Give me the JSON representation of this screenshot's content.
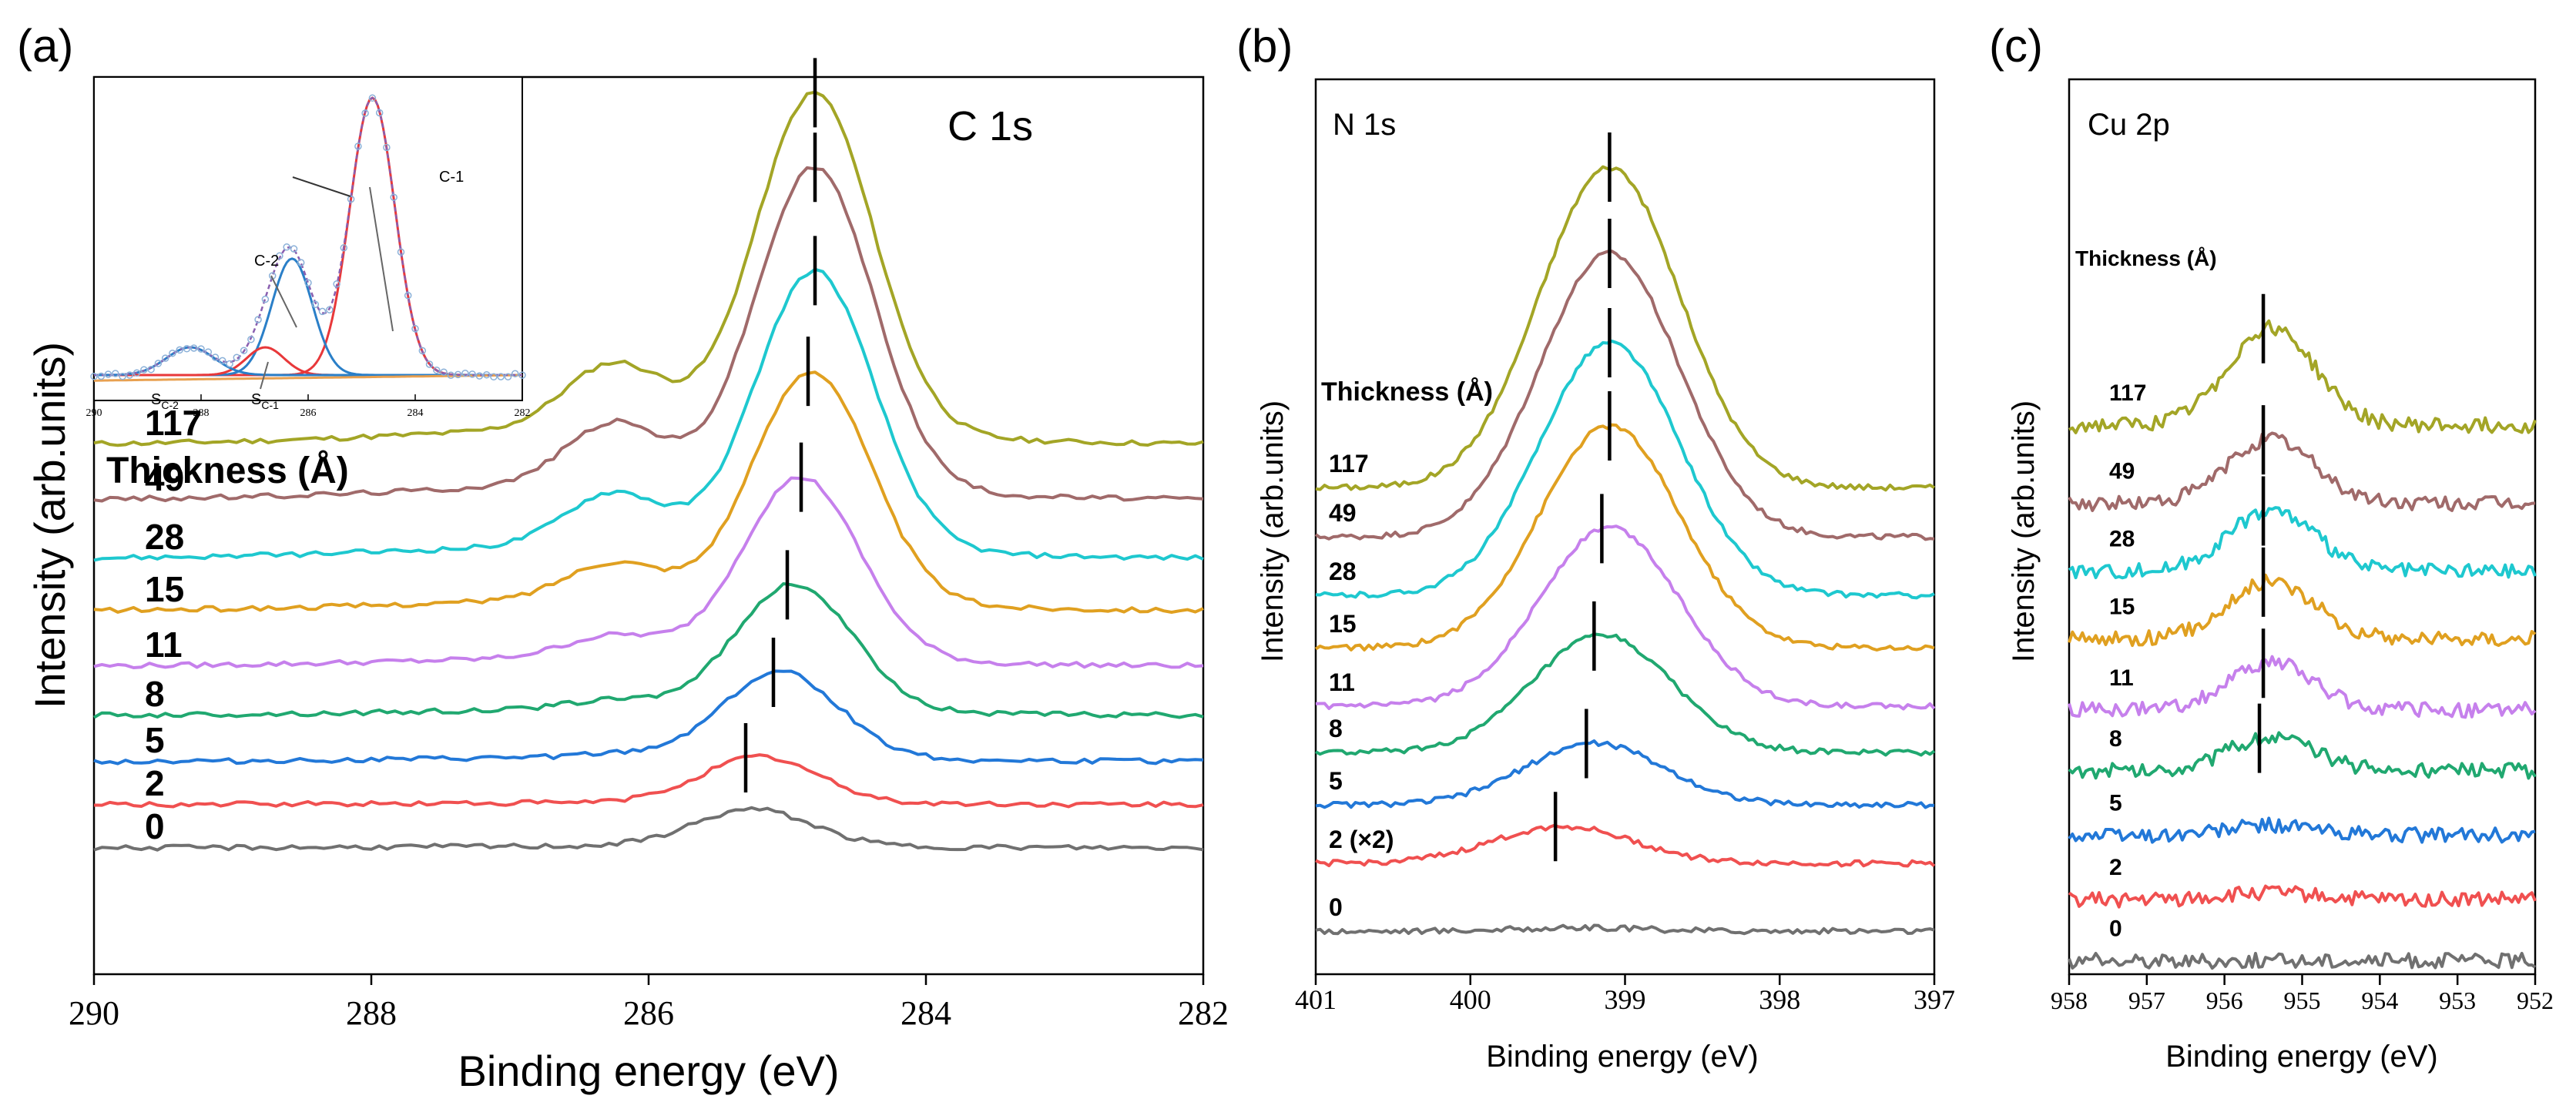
{
  "chart_data": [
    {
      "panel": "(a)",
      "type": "line",
      "title": "C 1s",
      "xlabel": "Binding energy (eV)",
      "ylabel": "Intensity (arb.units)",
      "xlim": [
        290,
        282
      ],
      "xticks": [
        "290",
        "288",
        "286",
        "284",
        "282"
      ],
      "legend_title": "Thickness (Å)",
      "series": [
        {
          "name": "117",
          "color": "#a3a526",
          "offset": 8.6,
          "peak_pos": 284.8,
          "peak_amp": 5.5,
          "second_amp": 1.05,
          "marker": 284.8
        },
        {
          "name": "49",
          "color": "#a06a6a",
          "offset": 7.7,
          "peak_pos": 284.8,
          "peak_amp": 5.2,
          "second_amp": 1.0,
          "marker": 284.8
        },
        {
          "name": "28",
          "color": "#1ec8cf",
          "offset": 6.75,
          "peak_pos": 284.8,
          "peak_amp": 4.5,
          "second_amp": 0.85,
          "marker": 284.8
        },
        {
          "name": "15",
          "color": "#e0a020",
          "offset": 5.9,
          "peak_pos": 284.82,
          "peak_amp": 3.75,
          "second_amp": 0.6,
          "marker": 284.85
        },
        {
          "name": "11",
          "color": "#c680ec",
          "offset": 5.0,
          "peak_pos": 284.9,
          "peak_amp": 2.95,
          "second_amp": 0.35,
          "marker": 284.9
        },
        {
          "name": "8",
          "color": "#20a870",
          "offset": 4.2,
          "peak_pos": 284.95,
          "peak_amp": 2.05,
          "second_amp": 0.15,
          "marker": 285.0
        },
        {
          "name": "5",
          "color": "#2278d8",
          "offset": 3.45,
          "peak_pos": 285.05,
          "peak_amp": 1.4,
          "second_amp": 0.05,
          "marker": 285.1
        },
        {
          "name": "2",
          "color": "#f05050",
          "offset": 2.75,
          "peak_pos": 285.2,
          "peak_amp": 0.75,
          "second_amp": 0.0,
          "marker": 285.3
        },
        {
          "name": "0",
          "color": "#707070",
          "offset": 2.05,
          "peak_pos": 285.25,
          "peak_amp": 0.6,
          "second_amp": 0.0,
          "marker": null
        }
      ],
      "inset": {
        "xlim": [
          290,
          282
        ],
        "xticks": [
          "290",
          "288",
          "286",
          "284",
          "282"
        ],
        "components": [
          {
            "name": "C-1",
            "center": 284.8,
            "amp": 1.0,
            "color": "#e8383a"
          },
          {
            "name": "C-2",
            "center": 286.3,
            "amp": 0.42,
            "color": "#2a7fc8"
          },
          {
            "name": "SC-1",
            "center": 286.8,
            "amp": 0.1,
            "color": "#e8383a"
          },
          {
            "name": "SC-2",
            "center": 288.2,
            "amp": 0.1,
            "color": "#2a7fc8"
          }
        ],
        "labels": [
          {
            "id": "c1",
            "text": "C-1"
          },
          {
            "id": "c2",
            "text": "C-2"
          },
          {
            "id": "sc2",
            "main": "S",
            "sub": "C-2"
          },
          {
            "id": "sc1",
            "main": "S",
            "sub": "C-1"
          }
        ],
        "background_color": "#e8a050",
        "fit_color": "#8a5fb0"
      }
    },
    {
      "panel": "(b)",
      "type": "line",
      "title": "N 1s",
      "xlabel": "Binding energy (eV)",
      "ylabel": "Intensity (arb.units)",
      "xlim": [
        401,
        397
      ],
      "xticks": [
        "401",
        "400",
        "399",
        "398",
        "397"
      ],
      "legend_title": "Thickness (Å)",
      "series": [
        {
          "name": "117",
          "color": "#a3a526",
          "offset": 7.9,
          "peak_pos": 399.1,
          "peak_amp": 5.2,
          "marker": 399.1
        },
        {
          "name": "49",
          "color": "#a06a6a",
          "offset": 7.1,
          "peak_pos": 399.1,
          "peak_amp": 4.6,
          "marker": 399.1
        },
        {
          "name": "28",
          "color": "#1ec8cf",
          "offset": 6.15,
          "peak_pos": 399.1,
          "peak_amp": 4.1,
          "marker": 399.1
        },
        {
          "name": "15",
          "color": "#e0a020",
          "offset": 5.3,
          "peak_pos": 399.1,
          "peak_amp": 3.6,
          "marker": 399.1
        },
        {
          "name": "11",
          "color": "#c680ec",
          "offset": 4.35,
          "peak_pos": 399.1,
          "peak_amp": 2.9,
          "marker": 399.15
        },
        {
          "name": "8",
          "color": "#20a870",
          "offset": 3.6,
          "peak_pos": 399.15,
          "peak_amp": 1.9,
          "marker": 399.2
        },
        {
          "name": "5",
          "color": "#2278d8",
          "offset": 2.75,
          "peak_pos": 399.2,
          "peak_amp": 1.0,
          "marker": 399.25
        },
        {
          "name": "2 (×2)",
          "color": "#f05050",
          "offset": 1.8,
          "peak_pos": 399.4,
          "peak_amp": 0.6,
          "marker": 399.45
        },
        {
          "name": "0",
          "color": "#707070",
          "offset": 0.7,
          "peak_pos": 399.3,
          "peak_amp": 0.05,
          "marker": null
        }
      ]
    },
    {
      "panel": "(c)",
      "type": "line",
      "title": "Cu 2p",
      "xlabel": "Binding energy (eV)",
      "ylabel": "Intensity (arb.units)",
      "xlim": [
        958,
        952
      ],
      "xticks": [
        "958",
        "957",
        "956",
        "955",
        "954",
        "953",
        "952"
      ],
      "legend_title": "Thickness (Å)",
      "series": [
        {
          "name": "117",
          "color": "#a3a526",
          "offset": 8.1,
          "peak_pos": 955.4,
          "peak_amp": 1.45,
          "marker": 955.5
        },
        {
          "name": "49",
          "color": "#a06a6a",
          "offset": 6.95,
          "peak_pos": 955.4,
          "peak_amp": 0.95,
          "marker": 955.5
        },
        {
          "name": "28",
          "color": "#1ec8cf",
          "offset": 5.95,
          "peak_pos": 955.4,
          "peak_amp": 0.9,
          "marker": 955.5
        },
        {
          "name": "15",
          "color": "#e0a020",
          "offset": 4.95,
          "peak_pos": 955.4,
          "peak_amp": 0.85,
          "marker": 955.5
        },
        {
          "name": "11",
          "color": "#c680ec",
          "offset": 3.9,
          "peak_pos": 955.4,
          "peak_amp": 0.7,
          "marker": 955.5
        },
        {
          "name": "8",
          "color": "#20a870",
          "offset": 3.0,
          "peak_pos": 955.4,
          "peak_amp": 0.5,
          "marker": 955.55
        },
        {
          "name": "5",
          "color": "#2278d8",
          "offset": 2.05,
          "peak_pos": 955.4,
          "peak_amp": 0.15,
          "marker": null
        },
        {
          "name": "2",
          "color": "#f05050",
          "offset": 1.1,
          "peak_pos": 955.4,
          "peak_amp": 0.1,
          "marker": null
        },
        {
          "name": "0",
          "color": "#707070",
          "offset": 0.2,
          "peak_pos": 955.4,
          "peak_amp": 0.0,
          "marker": null
        }
      ]
    }
  ]
}
